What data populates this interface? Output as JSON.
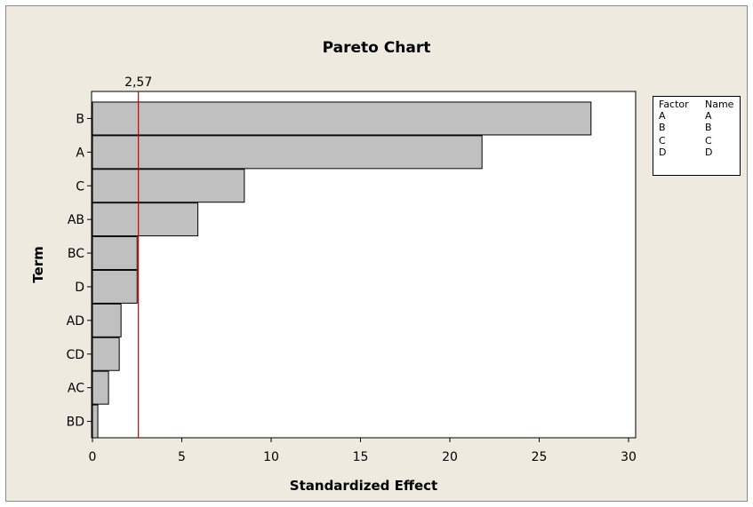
{
  "chart_data": {
    "type": "bar",
    "orientation": "horizontal",
    "title": "Pareto Chart",
    "xlabel": "Standardized Effect",
    "ylabel": "Term",
    "categories": [
      "B",
      "A",
      "C",
      "AB",
      "BC",
      "D",
      "AD",
      "CD",
      "AC",
      "BD"
    ],
    "values": [
      27.9,
      21.8,
      8.5,
      5.9,
      2.5,
      2.5,
      1.6,
      1.5,
      0.9,
      0.3
    ],
    "xlim": [
      0,
      31
    ],
    "xticks": [
      0,
      5,
      10,
      15,
      20,
      25,
      30
    ],
    "reference_line": {
      "value": 2.57,
      "label": "2,57",
      "color": "#cc0000"
    },
    "bar_color": "#c0c0c0",
    "grid": false,
    "legend": {
      "position": "right",
      "headers": [
        "Factor",
        "Name"
      ],
      "rows": [
        [
          "A",
          "A"
        ],
        [
          "B",
          "B"
        ],
        [
          "C",
          "C"
        ],
        [
          "D",
          "D"
        ]
      ]
    }
  }
}
